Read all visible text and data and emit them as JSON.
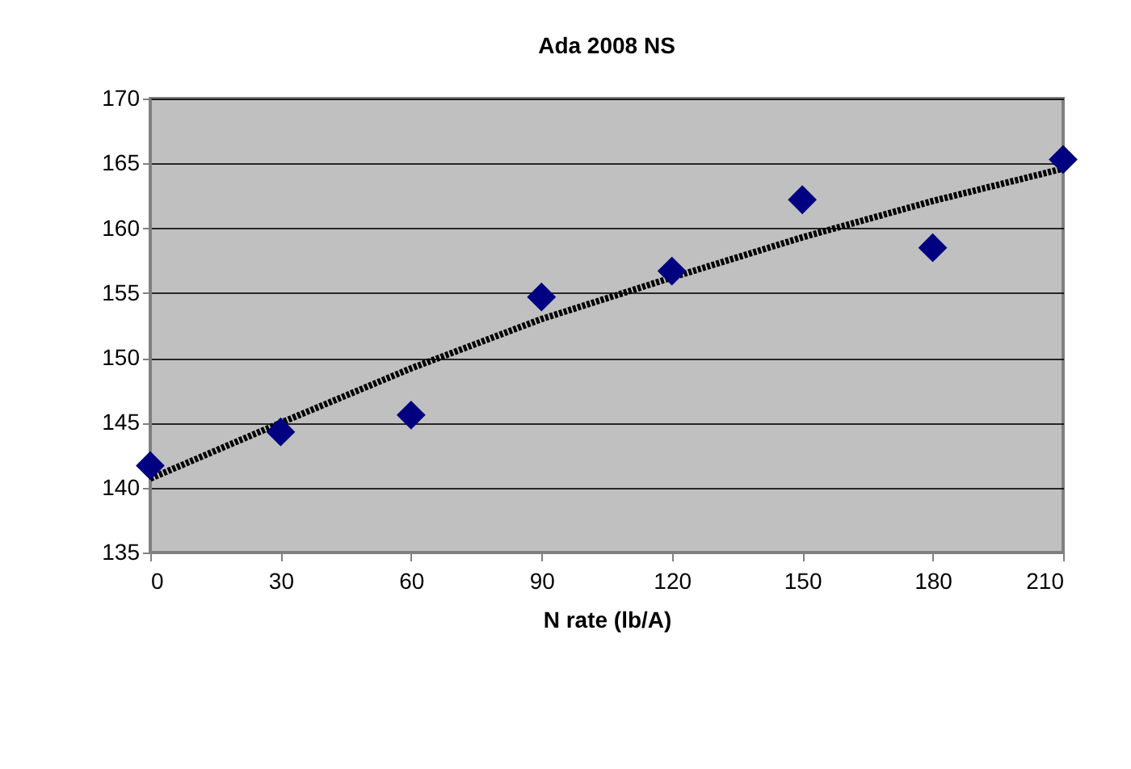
{
  "chart_data": {
    "type": "scatter",
    "title": "Ada 2008  NS",
    "xlabel": "N rate (lb/A)",
    "x": [
      0,
      30,
      60,
      90,
      120,
      150,
      180,
      210
    ],
    "series": [
      {
        "color": "#000080",
        "marker": "diamond",
        "values": [
          141.7,
          144.3,
          145.6,
          154.7,
          156.7,
          162.2,
          158.5,
          165.3
        ]
      },
      {
        "type": "line",
        "color": "#000000",
        "line_style": "dotted",
        "marker": "none",
        "x": [
          0,
          30,
          60,
          90,
          120,
          150,
          180,
          210
        ],
        "values": [
          140.7,
          145.0,
          149.2,
          153.0,
          156.2,
          159.3,
          162.1,
          164.6
        ]
      }
    ],
    "xlim": [
      0,
      210
    ],
    "xticks": [
      0,
      30,
      60,
      90,
      120,
      150,
      180,
      210
    ],
    "ylim": [
      135,
      170
    ],
    "yticks": [
      135,
      140,
      145,
      150,
      155,
      160,
      165,
      170
    ],
    "grid": "y"
  }
}
